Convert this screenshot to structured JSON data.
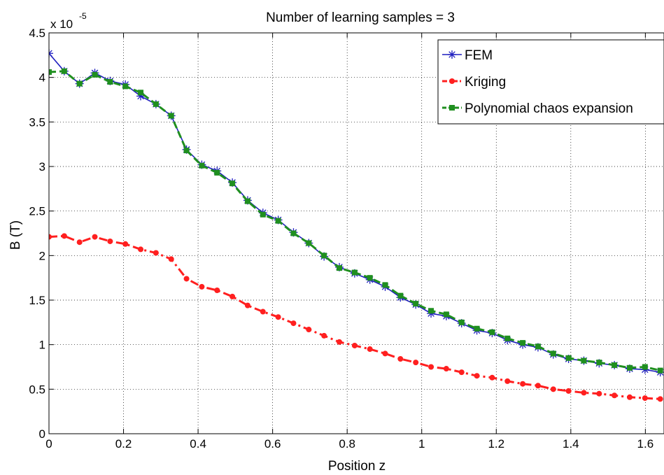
{
  "chart_data": {
    "type": "line",
    "title": "Number of learning samples = 3",
    "xlabel": "Position z",
    "ylabel": "B (T)",
    "y_multiplier_base": "x 10",
    "y_multiplier_exp": "-5",
    "xlim": [
      0,
      1.65
    ],
    "ylim": [
      0,
      4.5
    ],
    "xticks": [
      0,
      0.2,
      0.4,
      0.6,
      0.8,
      1,
      1.2,
      1.4,
      1.6
    ],
    "xtick_labels": [
      "0",
      "0.2",
      "0.4",
      "0.6",
      "0.8",
      "1",
      "1.2",
      "1.4",
      "1.6"
    ],
    "yticks": [
      0,
      0.5,
      1,
      1.5,
      2,
      2.5,
      3,
      3.5,
      4,
      4.5
    ],
    "ytick_labels": [
      "0",
      "0.5",
      "1",
      "1.5",
      "2",
      "2.5",
      "3",
      "3.5",
      "4",
      "4.5"
    ],
    "grid": true,
    "legend_position": "top-right",
    "series": [
      {
        "name": "FEM",
        "color": "#1f1fbf",
        "marker": "asterisk",
        "line_style": "solid",
        "x": [
          0,
          0.041,
          0.082,
          0.123,
          0.164,
          0.205,
          0.246,
          0.287,
          0.328,
          0.369,
          0.41,
          0.451,
          0.492,
          0.533,
          0.574,
          0.615,
          0.656,
          0.697,
          0.738,
          0.779,
          0.82,
          0.861,
          0.902,
          0.943,
          0.984,
          1.025,
          1.066,
          1.107,
          1.148,
          1.189,
          1.23,
          1.271,
          1.312,
          1.353,
          1.394,
          1.435,
          1.476,
          1.517,
          1.558,
          1.599,
          1.64
        ],
        "y": [
          4.27,
          4.07,
          3.93,
          4.05,
          3.96,
          3.92,
          3.79,
          3.7,
          3.57,
          3.19,
          3.02,
          2.95,
          2.82,
          2.62,
          2.48,
          2.4,
          2.26,
          2.14,
          1.99,
          1.87,
          1.8,
          1.73,
          1.65,
          1.53,
          1.45,
          1.35,
          1.32,
          1.24,
          1.16,
          1.13,
          1.05,
          1.0,
          0.97,
          0.89,
          0.84,
          0.82,
          0.79,
          0.77,
          0.73,
          0.72,
          0.69
        ]
      },
      {
        "name": "Kriging",
        "color": "#ff1f1f",
        "marker": "dot",
        "line_style": "dashdot",
        "x": [
          0,
          0.041,
          0.082,
          0.123,
          0.164,
          0.205,
          0.246,
          0.287,
          0.328,
          0.369,
          0.41,
          0.451,
          0.492,
          0.533,
          0.574,
          0.615,
          0.656,
          0.697,
          0.738,
          0.779,
          0.82,
          0.861,
          0.902,
          0.943,
          0.984,
          1.025,
          1.066,
          1.107,
          1.148,
          1.189,
          1.23,
          1.271,
          1.312,
          1.353,
          1.394,
          1.435,
          1.476,
          1.517,
          1.558,
          1.599,
          1.64
        ],
        "y": [
          2.21,
          2.22,
          2.15,
          2.21,
          2.16,
          2.13,
          2.07,
          2.03,
          1.96,
          1.74,
          1.65,
          1.61,
          1.54,
          1.44,
          1.37,
          1.31,
          1.24,
          1.17,
          1.1,
          1.03,
          0.99,
          0.95,
          0.9,
          0.84,
          0.8,
          0.75,
          0.73,
          0.69,
          0.65,
          0.63,
          0.59,
          0.56,
          0.54,
          0.5,
          0.48,
          0.46,
          0.45,
          0.43,
          0.41,
          0.4,
          0.39
        ]
      },
      {
        "name": "Polynomial chaos expansion",
        "color": "#1f8f1f",
        "marker": "square",
        "line_style": "dashed",
        "x": [
          0,
          0.041,
          0.082,
          0.123,
          0.164,
          0.205,
          0.246,
          0.287,
          0.328,
          0.369,
          0.41,
          0.451,
          0.492,
          0.533,
          0.574,
          0.615,
          0.656,
          0.697,
          0.738,
          0.779,
          0.82,
          0.861,
          0.902,
          0.943,
          0.984,
          1.025,
          1.066,
          1.107,
          1.148,
          1.189,
          1.23,
          1.271,
          1.312,
          1.353,
          1.394,
          1.435,
          1.476,
          1.517,
          1.558,
          1.599,
          1.64
        ],
        "y": [
          4.06,
          4.07,
          3.93,
          4.03,
          3.95,
          3.9,
          3.83,
          3.7,
          3.57,
          3.18,
          3.01,
          2.93,
          2.81,
          2.61,
          2.46,
          2.39,
          2.25,
          2.14,
          2.0,
          1.86,
          1.81,
          1.75,
          1.67,
          1.55,
          1.46,
          1.38,
          1.34,
          1.25,
          1.18,
          1.14,
          1.07,
          1.02,
          0.98,
          0.9,
          0.85,
          0.82,
          0.8,
          0.77,
          0.74,
          0.75,
          0.71
        ]
      }
    ]
  }
}
